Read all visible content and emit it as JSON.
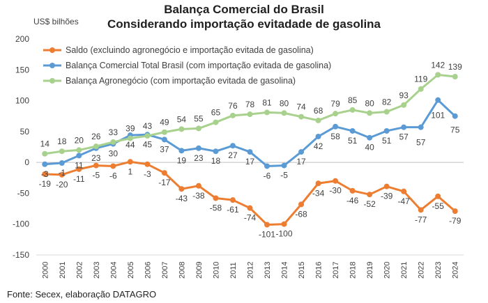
{
  "chart_data": {
    "type": "line",
    "title": "Balança Comercial do Brasil",
    "subtitle": "Considerando importação evitadade de gasolina",
    "ylabel": "US$ bilhões",
    "source": "Fonte: Secex, elaboração DATAGRO",
    "ylim": [
      -150,
      200
    ],
    "yticks": [
      -150,
      -100,
      -50,
      0,
      50,
      100,
      150,
      200
    ],
    "grid": false,
    "legend_position": "top-left",
    "x": [
      "2000",
      "2001",
      "2002",
      "2003",
      "2004",
      "2005",
      "2006",
      "2007",
      "2008",
      "2009",
      "2010",
      "2011",
      "2012",
      "2013",
      "2014",
      "2015",
      "2016",
      "2017",
      "2018",
      "2019",
      "2020",
      "2021",
      "2022",
      "2023",
      "2024"
    ],
    "series": [
      {
        "name": "Saldo (excluindo agronegócio e importação evitada de gasolina)",
        "color": "#ed7d31",
        "values": [
          -19,
          -20,
          -11,
          -5,
          -6,
          1,
          -3,
          -17,
          -43,
          -38,
          -58,
          -61,
          -74,
          -101,
          -100,
          -68,
          -34,
          -30,
          -46,
          -52,
          -39,
          -47,
          -77,
          -55,
          -79
        ]
      },
      {
        "name": "Balança Comercial Total Brasil (com importação evitada de gasolina)",
        "color": "#5b9bd5",
        "values": [
          -3,
          -1,
          11,
          23,
          30,
          44,
          45,
          37,
          19,
          23,
          18,
          27,
          17,
          -6,
          -5,
          17,
          42,
          58,
          51,
          40,
          51,
          57,
          57,
          101,
          75
        ]
      },
      {
        "name": "Balança Agronegócio (com importação evitada de gasolina)",
        "color": "#a9d18e",
        "values": [
          14,
          18,
          20,
          26,
          33,
          39,
          43,
          49,
          54,
          55,
          65,
          76,
          78,
          81,
          80,
          74,
          68,
          79,
          85,
          80,
          82,
          93,
          119,
          142,
          139
        ]
      }
    ]
  }
}
